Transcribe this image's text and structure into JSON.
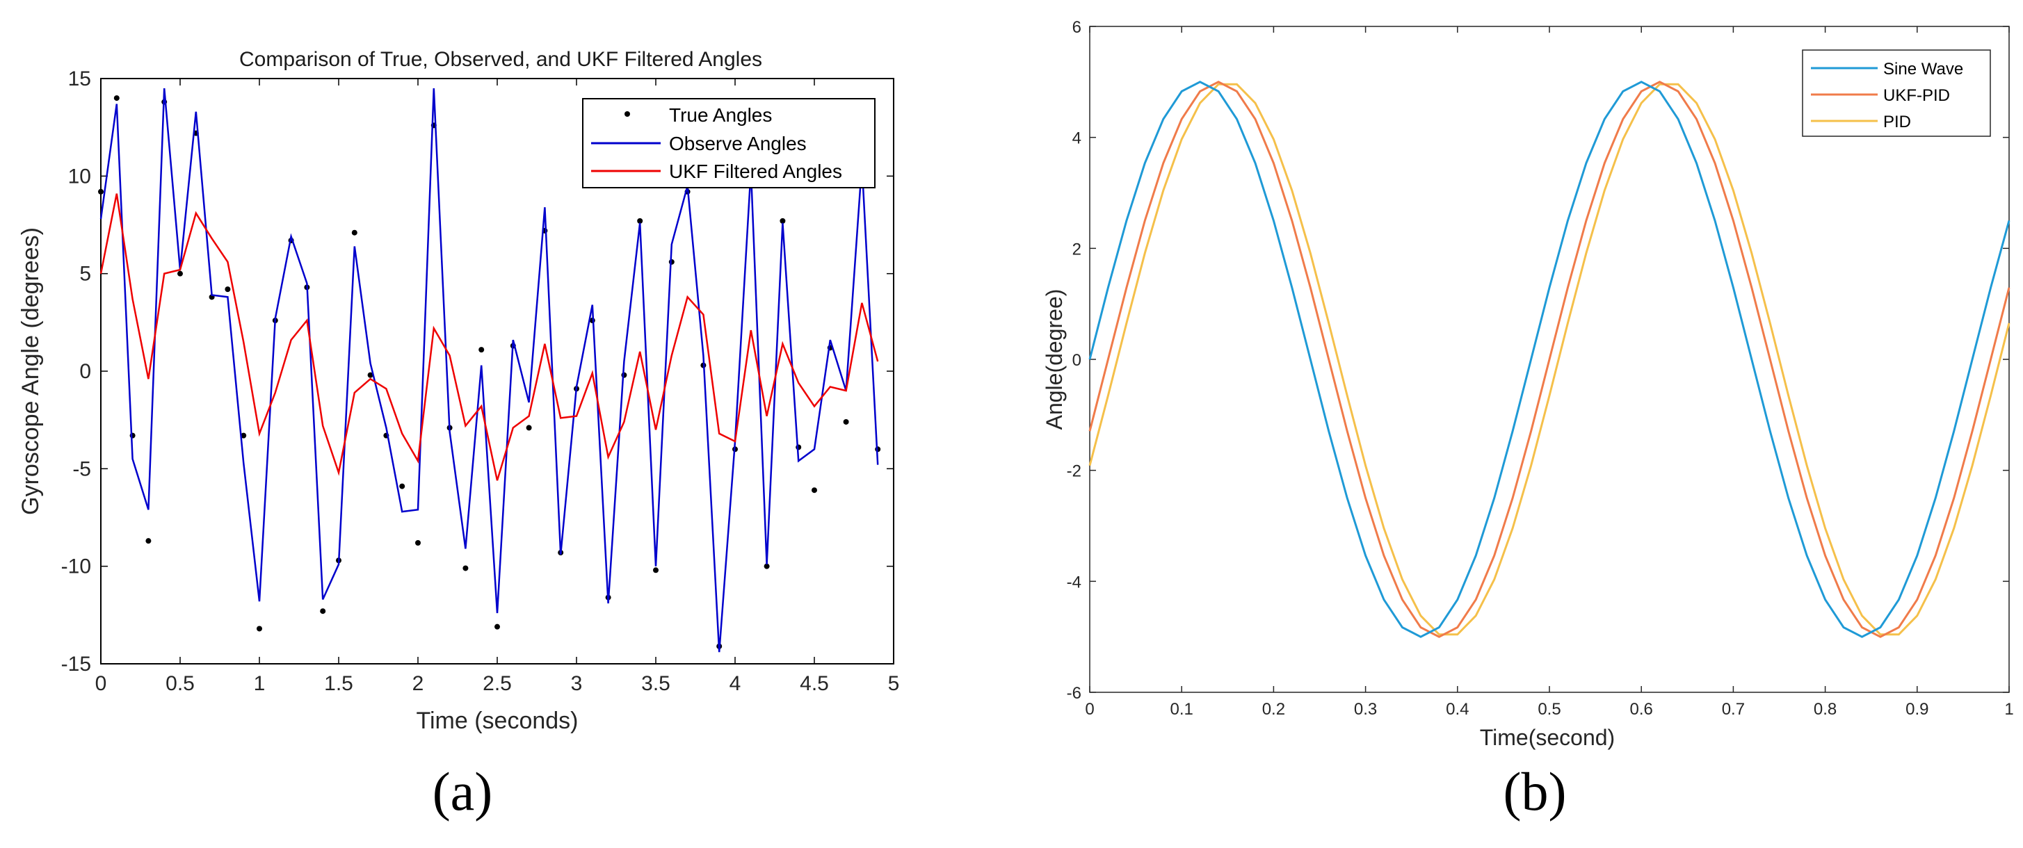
{
  "chart_data": [
    {
      "panel_label": "(a)",
      "type": "line",
      "title": "Comparison of True, Observed, and UKF Filtered Angles",
      "xlabel": "Time (seconds)",
      "ylabel": "Gyroscope Angle (degrees)",
      "xlim": [
        0,
        5
      ],
      "ylim": [
        -15,
        15
      ],
      "xticks": [
        "0",
        "0.5",
        "1",
        "1.5",
        "2",
        "2.5",
        "3",
        "3.5",
        "4",
        "4.5",
        "5"
      ],
      "xtick_values": [
        0,
        0.5,
        1,
        1.5,
        2,
        2.5,
        3,
        3.5,
        4,
        4.5,
        5
      ],
      "yticks": [
        "-15",
        "-10",
        "-5",
        "0",
        "5",
        "10",
        "15"
      ],
      "ytick_values": [
        -15,
        -10,
        -5,
        0,
        5,
        10,
        15
      ],
      "legend": {
        "position": "top-right",
        "entries": [
          "True Angles",
          "Observe Angles",
          "UKF Filtered Angles"
        ]
      },
      "x": [
        0,
        0.1,
        0.2,
        0.3,
        0.4,
        0.5,
        0.6,
        0.7,
        0.8,
        0.9,
        1.0,
        1.1,
        1.2,
        1.3,
        1.4,
        1.5,
        1.6,
        1.7,
        1.8,
        1.9,
        2.0,
        2.1,
        2.2,
        2.3,
        2.4,
        2.5,
        2.6,
        2.7,
        2.8,
        2.9,
        3.0,
        3.1,
        3.2,
        3.3,
        3.4,
        3.5,
        3.6,
        3.7,
        3.8,
        3.9,
        4.0,
        4.1,
        4.2,
        4.3,
        4.4,
        4.5,
        4.6,
        4.7,
        4.8,
        4.9
      ],
      "series": [
        {
          "name": "True Angles",
          "style": "dots",
          "color": "#000000",
          "values": [
            9.2,
            14.0,
            -3.3,
            -8.7,
            13.8,
            5.0,
            12.2,
            3.8,
            4.2,
            -3.3,
            -13.2,
            2.6,
            6.7,
            4.3,
            -12.3,
            -9.7,
            7.1,
            -0.2,
            -3.3,
            -5.9,
            -8.8,
            12.6,
            -2.9,
            -10.1,
            1.1,
            -13.1,
            1.3,
            -2.9,
            7.2,
            -9.3,
            -0.9,
            2.6,
            -11.6,
            -0.2,
            7.7,
            -10.2,
            5.6,
            9.2,
            0.3,
            -14.1,
            -4.0,
            10.0,
            -10.0,
            7.7,
            -3.9,
            -6.1,
            1.2,
            -2.6,
            9.8,
            -4.0
          ]
        },
        {
          "name": "Observe Angles",
          "style": "line",
          "color": "#0000cc",
          "values": [
            7.8,
            13.7,
            -4.5,
            -7.1,
            14.5,
            5.2,
            13.3,
            3.9,
            3.8,
            -4.7,
            -11.8,
            2.7,
            6.9,
            4.5,
            -11.7,
            -9.9,
            6.4,
            0.4,
            -2.9,
            -7.2,
            -7.1,
            14.5,
            -3.1,
            -9.1,
            0.3,
            -12.4,
            1.6,
            -1.6,
            8.4,
            -9.4,
            -0.8,
            3.4,
            -11.9,
            0.5,
            7.6,
            -10.0,
            6.5,
            9.5,
            0.8,
            -14.4,
            -3.6,
            10.3,
            -9.9,
            7.6,
            -4.6,
            -4.0,
            1.6,
            -1.0,
            10.6,
            -4.8
          ]
        },
        {
          "name": "UKF Filtered Angles",
          "style": "line",
          "color": "#ee0000",
          "values": [
            5.0,
            9.1,
            3.7,
            -0.4,
            5.0,
            5.2,
            8.1,
            6.8,
            5.6,
            1.5,
            -3.2,
            -1.1,
            1.6,
            2.6,
            -2.8,
            -5.2,
            -1.1,
            -0.4,
            -0.9,
            -3.2,
            -4.6,
            2.2,
            0.8,
            -2.8,
            -1.8,
            -5.6,
            -2.9,
            -2.3,
            1.4,
            -2.4,
            -2.3,
            -0.1,
            -4.4,
            -2.6,
            1.0,
            -3.0,
            0.8,
            3.8,
            2.9,
            -3.2,
            -3.6,
            2.1,
            -2.3,
            1.4,
            -0.6,
            -1.8,
            -0.8,
            -1.0,
            3.5,
            0.5
          ]
        }
      ]
    },
    {
      "panel_label": "(b)",
      "type": "line",
      "title": "",
      "xlabel": "Time(second)",
      "ylabel": "Angle(degree)",
      "xlim": [
        0,
        1
      ],
      "ylim": [
        -6,
        6
      ],
      "xticks": [
        "0",
        "0.1",
        "0.2",
        "0.3",
        "0.4",
        "0.5",
        "0.6",
        "0.7",
        "0.8",
        "0.9",
        "1"
      ],
      "xtick_values": [
        0,
        0.1,
        0.2,
        0.3,
        0.4,
        0.5,
        0.6,
        0.7,
        0.8,
        0.9,
        1
      ],
      "yticks": [
        "-6",
        "-4",
        "-2",
        "0",
        "2",
        "4",
        "6"
      ],
      "ytick_values": [
        -6,
        -4,
        -2,
        0,
        2,
        4,
        6
      ],
      "legend": {
        "position": "top-right",
        "entries": [
          "Sine Wave",
          "UKF-PID",
          "PID"
        ]
      },
      "sample_step": 0.02,
      "series": [
        {
          "name": "Sine Wave",
          "color": "#1f9ad6",
          "amplitude": 5,
          "period": 0.48,
          "delay": 0.0
        },
        {
          "name": "UKF-PID",
          "color": "#f07b4a",
          "amplitude": 5,
          "period": 0.48,
          "delay": 0.02
        },
        {
          "name": "PID",
          "color": "#f5c04a",
          "amplitude": 5,
          "period": 0.48,
          "delay": 0.03
        }
      ]
    }
  ],
  "colors": {
    "axis": "#262626",
    "frame": "#000000"
  }
}
